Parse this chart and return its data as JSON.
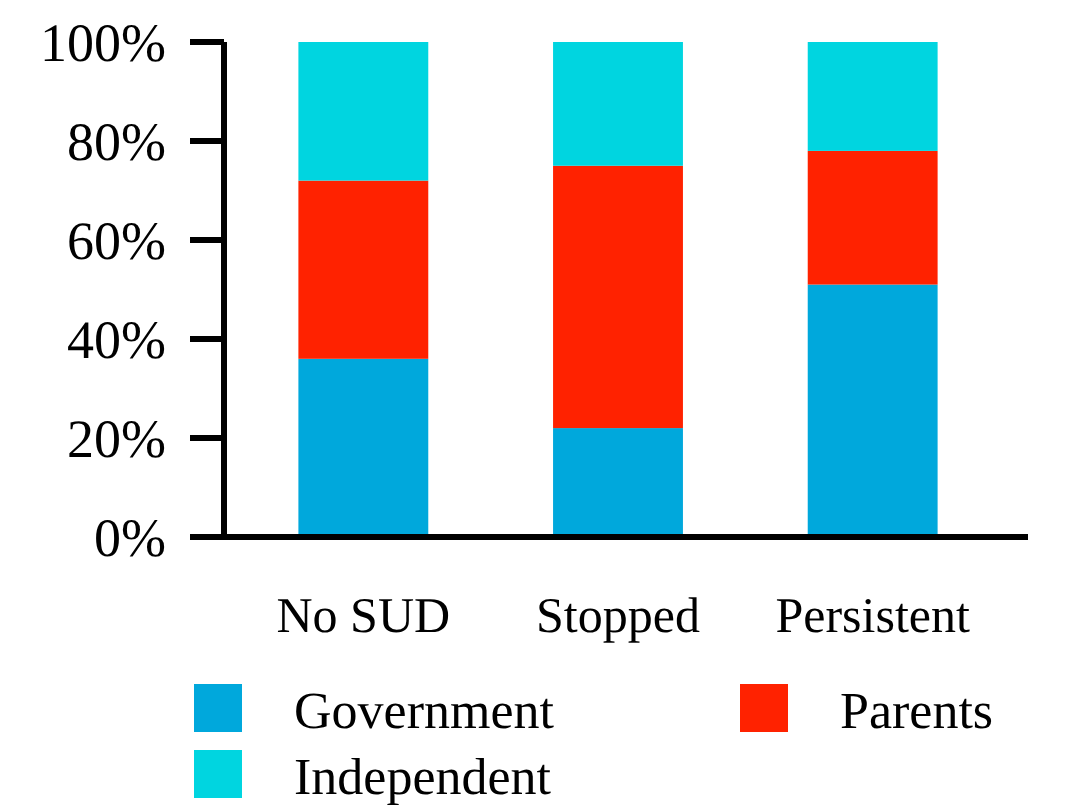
{
  "chart_data": {
    "type": "bar",
    "stacked": true,
    "legend": "bottom",
    "categories": [
      "No SUD",
      "Stopped",
      "Persistent"
    ],
    "series": [
      {
        "name": "Government",
        "color": "#00a8dc",
        "values": [
          36,
          22,
          51
        ]
      },
      {
        "name": "Parents",
        "color": "#ff2200",
        "values": [
          36,
          53,
          27
        ]
      },
      {
        "name": "Independent",
        "color": "#00d5e0",
        "values": [
          28,
          25,
          22
        ]
      }
    ],
    "ylim": [
      0,
      100
    ],
    "yticks": [
      {
        "value": 0,
        "label": "0%"
      },
      {
        "value": 20,
        "label": "20%"
      },
      {
        "value": 40,
        "label": "40%"
      },
      {
        "value": 60,
        "label": "60%"
      },
      {
        "value": 80,
        "label": "80%"
      },
      {
        "value": 100,
        "label": "100%"
      }
    ]
  }
}
